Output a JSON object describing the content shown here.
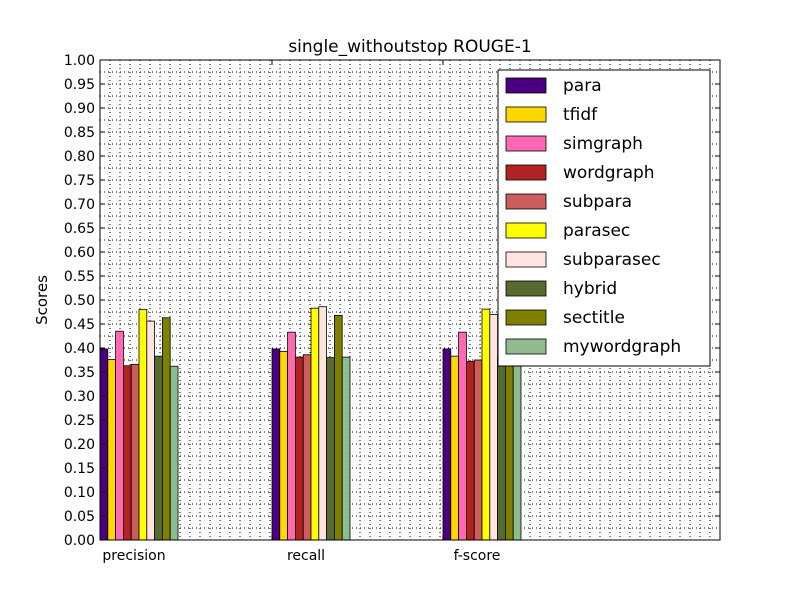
{
  "chart_data": {
    "type": "bar",
    "title": "single_withoutstop ROUGE-1",
    "xlabel": "",
    "ylabel": "Scores",
    "ylim": [
      0,
      1.0
    ],
    "yticks": [
      "0.00",
      "0.05",
      "0.10",
      "0.15",
      "0.20",
      "0.25",
      "0.30",
      "0.35",
      "0.40",
      "0.45",
      "0.50",
      "0.55",
      "0.60",
      "0.65",
      "0.70",
      "0.75",
      "0.80",
      "0.85",
      "0.90",
      "0.95",
      "1.00"
    ],
    "categories": [
      "precision",
      "recall",
      "f-score"
    ],
    "grid": true,
    "legend_position": "top-right",
    "series": [
      {
        "name": "para",
        "color": "#4b0082",
        "values": [
          0.398,
          0.398,
          0.398
        ]
      },
      {
        "name": "tfidf",
        "color": "#ffd700",
        "values": [
          0.376,
          0.393,
          0.383
        ]
      },
      {
        "name": "simgraph",
        "color": "#ff69b4",
        "values": [
          0.435,
          0.433,
          0.433
        ]
      },
      {
        "name": "wordgraph",
        "color": "#b22222",
        "values": [
          0.363,
          0.381,
          0.372
        ]
      },
      {
        "name": "subpara",
        "color": "#cd5c5c",
        "values": [
          0.366,
          0.386,
          0.375
        ]
      },
      {
        "name": "parasec",
        "color": "#ffff00",
        "values": [
          0.48,
          0.483,
          0.481
        ]
      },
      {
        "name": "subparasec",
        "color": "#ffe4e1",
        "values": [
          0.456,
          0.486,
          0.47
        ]
      },
      {
        "name": "hybrid",
        "color": "#556b2f",
        "values": [
          0.383,
          0.38,
          0.381
        ]
      },
      {
        "name": "sectitle",
        "color": "#808000",
        "values": [
          0.463,
          0.468,
          0.465
        ]
      },
      {
        "name": "mywordgraph",
        "color": "#8fbc8f",
        "values": [
          0.362,
          0.381,
          0.372
        ]
      }
    ]
  }
}
